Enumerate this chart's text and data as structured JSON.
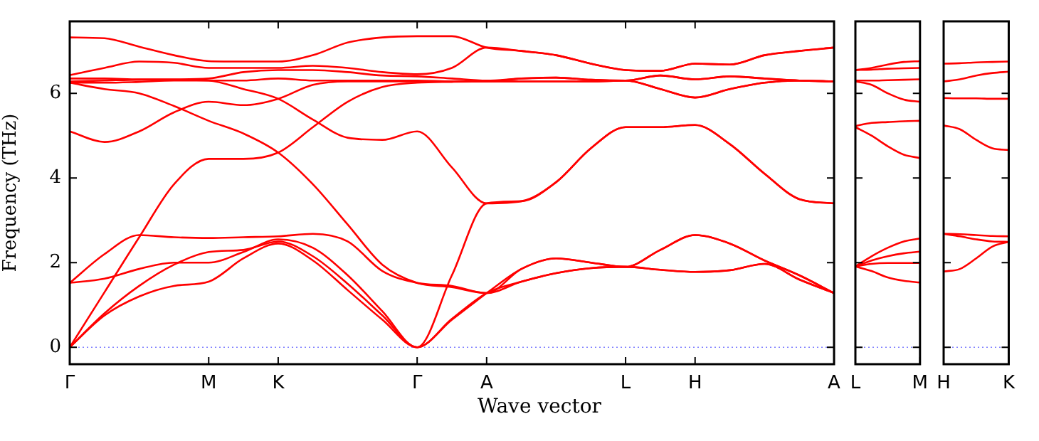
{
  "chart_data": [
    {
      "type": "line",
      "ylabel": "Frequency (THz)",
      "xlabel": "Wave vector",
      "legend": false,
      "grid": false,
      "marker": "none",
      "line_style": "solid",
      "categories": [
        "Γ",
        null,
        null,
        null,
        "M",
        null,
        "K",
        null,
        null,
        null,
        "Γ",
        null,
        "A",
        null,
        null,
        null,
        "L",
        null,
        "H",
        null,
        null,
        null,
        "A"
      ],
      "ylim": [
        -0.4,
        7.7
      ],
      "yticks": [
        0,
        2,
        4,
        6
      ],
      "ref_lines": [
        {
          "axis": "y",
          "value": 0,
          "color": "#8080ff",
          "line_style": "dotted"
        }
      ],
      "series": [
        {
          "color": "#ff0000",
          "values": [
            7.32,
            7.3,
            7.1,
            6.9,
            6.76,
            6.75,
            6.75,
            6.9,
            7.2,
            7.32,
            7.35,
            7.35,
            7.08,
            7.0,
            6.9,
            6.7,
            6.55,
            6.53,
            6.7,
            6.68,
            6.9,
            7.0,
            7.08
          ]
        },
        {
          "color": "#ff0000",
          "values": [
            6.43,
            6.6,
            6.75,
            6.72,
            6.6,
            6.6,
            6.6,
            6.65,
            6.6,
            6.5,
            6.45,
            6.6,
            7.08,
            7.0,
            6.9,
            6.7,
            6.55,
            6.53,
            6.7,
            6.68,
            6.9,
            7.0,
            7.08
          ]
        },
        {
          "color": "#ff0000",
          "values": [
            6.35,
            6.35,
            6.33,
            6.33,
            6.35,
            6.5,
            6.55,
            6.55,
            6.5,
            6.42,
            6.4,
            6.35,
            6.3,
            6.35,
            6.37,
            6.32,
            6.3,
            6.42,
            6.33,
            6.4,
            6.35,
            6.3,
            6.28
          ]
        },
        {
          "color": "#ff0000",
          "values": [
            6.25,
            6.25,
            6.27,
            6.3,
            6.3,
            6.3,
            6.35,
            6.3,
            6.3,
            6.3,
            6.3,
            6.28,
            6.28,
            6.35,
            6.37,
            6.32,
            6.3,
            6.42,
            6.33,
            6.4,
            6.35,
            6.3,
            6.28
          ]
        },
        {
          "color": "#ff0000",
          "values": [
            5.1,
            4.85,
            5.1,
            5.55,
            5.8,
            5.72,
            5.87,
            6.2,
            6.28,
            6.28,
            6.28,
            6.28,
            6.28,
            6.28,
            6.28,
            6.28,
            6.3,
            6.1,
            5.9,
            6.1,
            6.25,
            6.3,
            6.28
          ]
        },
        {
          "color": "#ff0000",
          "values": [
            0,
            1.3,
            2.6,
            3.85,
            4.45,
            4.45,
            4.6,
            5.2,
            5.8,
            6.15,
            6.25,
            6.27,
            6.28,
            6.28,
            6.28,
            6.28,
            6.3,
            6.1,
            5.9,
            6.1,
            6.25,
            6.3,
            6.28
          ]
        },
        {
          "color": "#ff0000",
          "values": [
            6.28,
            6.3,
            6.32,
            6.32,
            6.3,
            6.1,
            5.87,
            5.38,
            4.95,
            4.9,
            5.1,
            4.25,
            3.4,
            3.45,
            3.9,
            4.7,
            5.2,
            5.2,
            5.25,
            4.8,
            4.1,
            3.5,
            3.4
          ]
        },
        {
          "color": "#ff0000",
          "values": [
            1.52,
            1.62,
            1.85,
            2.0,
            2.0,
            2.25,
            2.55,
            2.35,
            1.7,
            0.85,
            0,
            1.7,
            3.4,
            3.45,
            3.9,
            4.7,
            5.2,
            5.2,
            5.25,
            4.8,
            4.1,
            3.5,
            3.4
          ]
        },
        {
          "color": "#ff0000",
          "values": [
            6.25,
            6.1,
            6.0,
            5.7,
            5.35,
            5.05,
            4.6,
            3.85,
            2.9,
            1.95,
            1.52,
            1.42,
            1.28,
            1.55,
            1.75,
            1.87,
            1.9,
            1.83,
            1.78,
            1.82,
            1.97,
            1.6,
            1.28
          ]
        },
        {
          "color": "#ff0000",
          "values": [
            1.52,
            2.2,
            2.65,
            2.6,
            2.58,
            2.6,
            2.62,
            2.68,
            2.5,
            1.8,
            1.52,
            1.45,
            1.28,
            1.85,
            2.1,
            2.0,
            1.9,
            2.3,
            2.65,
            2.45,
            2.05,
            1.7,
            1.28
          ]
        },
        {
          "color": "#ff0000",
          "values": [
            0,
            0.8,
            1.45,
            1.95,
            2.25,
            2.3,
            2.5,
            2.15,
            1.5,
            0.75,
            0,
            0.67,
            1.28,
            1.55,
            1.75,
            1.87,
            1.9,
            1.83,
            1.78,
            1.82,
            1.97,
            1.6,
            1.28
          ]
        },
        {
          "color": "#ff0000",
          "values": [
            0,
            0.75,
            1.2,
            1.45,
            1.55,
            2.1,
            2.45,
            2.05,
            1.35,
            0.65,
            0,
            0.65,
            1.28,
            null,
            null,
            null,
            null,
            null,
            null,
            null,
            null,
            null,
            null
          ]
        },
        {
          "color": "#ff0000",
          "values": [
            null,
            null,
            null,
            null,
            null,
            null,
            null,
            null,
            null,
            null,
            null,
            null,
            1.28,
            1.85,
            2.1,
            2.0,
            1.9,
            2.3,
            2.65,
            2.45,
            2.05,
            1.7,
            1.28
          ]
        }
      ]
    },
    {
      "type": "line",
      "legend": false,
      "grid": false,
      "marker": "none",
      "line_style": "solid",
      "tick_labels": "x",
      "categories": [
        "L",
        null,
        null,
        null,
        "M"
      ],
      "ylim": [
        -0.4,
        7.7
      ],
      "yticks": [
        0,
        2,
        4,
        6
      ],
      "ref_lines": [
        {
          "axis": "y",
          "value": 0,
          "color": "#8080ff",
          "line_style": "dotted"
        }
      ],
      "series": [
        {
          "color": "#ff0000",
          "values": [
            6.55,
            6.6,
            6.68,
            6.74,
            6.76
          ]
        },
        {
          "color": "#ff0000",
          "values": [
            6.55,
            6.56,
            6.58,
            6.59,
            6.6
          ]
        },
        {
          "color": "#ff0000",
          "values": [
            6.3,
            6.3,
            6.31,
            6.32,
            6.33
          ]
        },
        {
          "color": "#ff0000",
          "values": [
            6.28,
            6.2,
            6.0,
            5.85,
            5.8
          ]
        },
        {
          "color": "#ff0000",
          "values": [
            5.23,
            5.3,
            5.32,
            5.34,
            5.35
          ]
        },
        {
          "color": "#ff0000",
          "values": [
            5.2,
            5.0,
            4.75,
            4.55,
            4.47
          ]
        },
        {
          "color": "#ff0000",
          "values": [
            1.91,
            2.15,
            2.35,
            2.5,
            2.57
          ]
        },
        {
          "color": "#ff0000",
          "values": [
            1.91,
            2.05,
            2.15,
            2.22,
            2.26
          ]
        },
        {
          "color": "#ff0000",
          "values": [
            1.91,
            1.97,
            1.99,
            1.99,
            1.99
          ]
        },
        {
          "color": "#ff0000",
          "values": [
            1.91,
            1.8,
            1.65,
            1.57,
            1.53
          ]
        }
      ]
    },
    {
      "type": "line",
      "legend": false,
      "grid": false,
      "marker": "none",
      "line_style": "solid",
      "tick_labels": "x",
      "categories": [
        "H",
        null,
        null,
        null,
        "K"
      ],
      "ylim": [
        -0.4,
        7.7
      ],
      "yticks": [
        0,
        2,
        4,
        6
      ],
      "ref_lines": [
        {
          "axis": "y",
          "value": 0,
          "color": "#8080ff",
          "line_style": "dotted"
        }
      ],
      "series": [
        {
          "color": "#ff0000",
          "values": [
            6.7,
            6.71,
            6.73,
            6.74,
            6.75
          ]
        },
        {
          "color": "#ff0000",
          "values": [
            6.28,
            6.33,
            6.42,
            6.48,
            6.51
          ]
        },
        {
          "color": "#ff0000",
          "values": [
            5.89,
            5.88,
            5.88,
            5.87,
            5.87
          ]
        },
        {
          "color": "#ff0000",
          "values": [
            5.24,
            5.15,
            4.9,
            4.7,
            4.66
          ]
        },
        {
          "color": "#ff0000",
          "values": [
            2.68,
            2.67,
            2.65,
            2.63,
            2.62
          ]
        },
        {
          "color": "#ff0000",
          "values": [
            2.68,
            2.62,
            2.55,
            2.5,
            2.49
          ]
        },
        {
          "color": "#ff0000",
          "values": [
            1.79,
            1.85,
            2.1,
            2.38,
            2.49
          ]
        }
      ]
    }
  ]
}
